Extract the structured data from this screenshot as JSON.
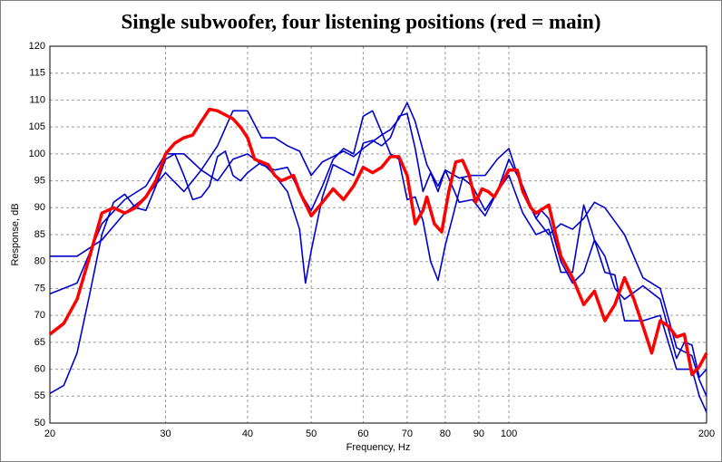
{
  "chart_data": {
    "type": "line",
    "title": "Single subwoofer, four listening positions (red = main)",
    "x_label": "Frequency, Hz",
    "y_label": "Response, dB",
    "xlim": [
      20,
      200
    ],
    "ylim": [
      50,
      120
    ],
    "log_x": true,
    "grid": true,
    "xticks": [
      20,
      30,
      40,
      50,
      60,
      70,
      80,
      90,
      100,
      200
    ],
    "yticks": [
      50,
      55,
      60,
      65,
      70,
      75,
      80,
      85,
      90,
      95,
      100,
      105,
      110,
      115,
      120
    ],
    "series": [
      {
        "color": "#0000cc",
        "x": [
          20,
          22,
          24,
          26,
          28,
          30,
          32,
          34,
          36,
          38,
          40,
          42,
          44,
          46,
          48,
          50,
          52,
          54,
          56,
          58,
          60,
          64,
          66,
          68,
          70,
          72,
          75,
          78,
          80,
          84,
          88,
          92,
          96,
          100,
          105,
          110,
          115,
          120,
          125,
          130,
          135,
          140,
          150,
          160,
          170,
          180,
          190,
          195,
          200
        ],
        "values": [
          81,
          81,
          84,
          89,
          92,
          96.5,
          93,
          97,
          101.5,
          108,
          108,
          103,
          103,
          101.5,
          100.5,
          96,
          98.5,
          99.5,
          100.5,
          99.5,
          101,
          103.5,
          104.5,
          106.5,
          109.5,
          106,
          98,
          94,
          97,
          95.5,
          96,
          96,
          99,
          101,
          93,
          88,
          85,
          87,
          86,
          88,
          91,
          90,
          85,
          77,
          75,
          64,
          62.5,
          58,
          55
        ]
      },
      {
        "color": "#0000cc",
        "x": [
          20,
          22,
          24,
          26,
          28,
          30,
          32,
          34,
          36,
          38,
          40,
          42,
          44,
          46,
          48,
          50,
          52,
          54,
          56,
          58,
          60,
          62,
          64,
          66,
          68,
          70,
          72,
          74,
          76,
          78,
          80,
          82,
          85,
          88,
          92,
          96,
          100,
          105,
          110,
          112,
          115,
          120,
          125,
          130,
          135,
          140,
          145,
          150,
          160,
          170,
          180,
          185,
          190,
          195,
          200
        ],
        "values": [
          74,
          76,
          87,
          91.5,
          94,
          100,
          100,
          97,
          95,
          99,
          100,
          98,
          97,
          97.5,
          93,
          89.5,
          94,
          99,
          101,
          100,
          107,
          108,
          104,
          100,
          99,
          91.5,
          92,
          87.5,
          80,
          76.5,
          83,
          88,
          95.5,
          94,
          89.5,
          93,
          99,
          94,
          88,
          89.5,
          88,
          80,
          76,
          78,
          84,
          81,
          75,
          73,
          75.5,
          73,
          62,
          65,
          64.5,
          58.5,
          60
        ]
      },
      {
        "color": "#0000cc",
        "x": [
          20,
          21,
          22,
          23,
          24,
          25,
          26,
          27,
          28,
          29,
          30,
          31,
          32,
          33,
          34,
          35,
          36,
          37,
          38,
          39,
          40,
          42,
          44,
          46,
          48,
          49,
          50,
          52,
          54,
          56,
          58,
          60,
          62,
          64,
          66,
          68,
          70,
          72,
          74,
          76,
          78,
          80,
          84,
          88,
          92,
          96,
          100,
          105,
          110,
          115,
          120,
          125,
          130,
          135,
          140,
          145,
          150,
          160,
          170,
          180,
          190,
          195,
          200
        ],
        "values": [
          55.5,
          57,
          63,
          74,
          85,
          91,
          92.5,
          90,
          89.5,
          94,
          99,
          100,
          96,
          91.5,
          92,
          94,
          99.5,
          100.5,
          96,
          95,
          96.5,
          98.5,
          96,
          93,
          86,
          76,
          82,
          92,
          98,
          97,
          96,
          102,
          102.5,
          101.5,
          103,
          107,
          107.5,
          101,
          93,
          96.5,
          93,
          97,
          91,
          91.5,
          88.5,
          93,
          96,
          89,
          85,
          86,
          78,
          78,
          90.5,
          84,
          78,
          77.5,
          69,
          69,
          70,
          60,
          60,
          55,
          52
        ]
      },
      {
        "color": "#ff0000",
        "x": [
          20,
          21,
          22,
          23,
          24,
          25,
          26,
          27,
          28,
          29,
          30,
          31,
          32,
          33,
          34,
          35,
          36,
          38,
          39,
          40,
          41,
          42,
          43,
          44,
          45,
          46,
          47,
          48,
          50,
          52,
          54,
          56,
          58,
          60,
          62,
          64,
          66,
          68,
          70,
          72,
          74,
          75,
          77,
          79,
          81,
          83,
          85,
          87,
          89,
          91,
          93,
          95,
          98,
          100,
          103,
          105,
          108,
          110,
          115,
          120,
          125,
          130,
          135,
          140,
          145,
          150,
          155,
          160,
          165,
          170,
          175,
          180,
          185,
          190,
          195,
          200
        ],
        "values": [
          66.5,
          68.5,
          73,
          81,
          89,
          90,
          89,
          90,
          92,
          95,
          100,
          102,
          103,
          103.5,
          106,
          108.3,
          108,
          106.5,
          105,
          103,
          99,
          98.5,
          98,
          96,
          95,
          95.5,
          96,
          93,
          88.5,
          91,
          93.5,
          91.5,
          94,
          97.5,
          96.5,
          97.5,
          99.5,
          99.5,
          96,
          87,
          89.5,
          92,
          87,
          85.5,
          93,
          98.5,
          98.8,
          96,
          91,
          93.5,
          93,
          92,
          95,
          97,
          97,
          93,
          90,
          89,
          90.5,
          81,
          77,
          72,
          74.5,
          69,
          72,
          77,
          73,
          68,
          63,
          69,
          68,
          66,
          66.5,
          59,
          60.5,
          63
        ]
      }
    ]
  }
}
